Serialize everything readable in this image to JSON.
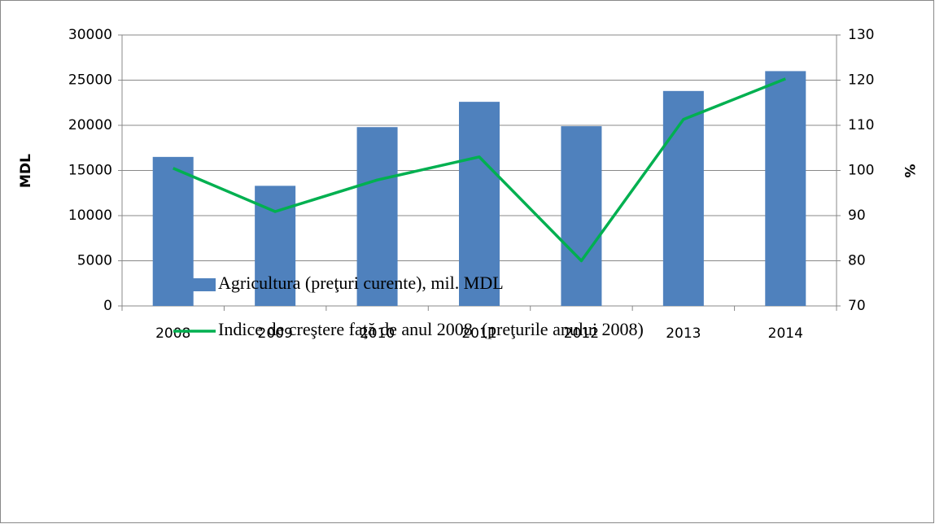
{
  "chart_data": {
    "type": "combo",
    "ylabel": "MDL",
    "y2label": "%",
    "categories": [
      "2008",
      "2009",
      "2010",
      "2011",
      "2012",
      "2013",
      "2014"
    ],
    "series": [
      {
        "name": "Agricultura (preţuri curente), mil. MDL",
        "type": "bar",
        "color": "#4f81bd",
        "values": [
          16500,
          13300,
          19800,
          22600,
          19900,
          23800,
          26000
        ]
      },
      {
        "name": "Indice de creştere faţă de anul 2008  (preţurile anului 2008)",
        "type": "line",
        "axis": "y2",
        "color": "#00b050",
        "values": [
          100.5,
          90.9,
          97.9,
          103,
          80,
          111.3,
          120.3
        ]
      }
    ],
    "ylim": [
      0,
      30000
    ],
    "yticks": [
      0,
      5000,
      10000,
      15000,
      20000,
      25000,
      30000
    ],
    "y2lim": [
      70,
      130
    ],
    "y2ticks": [
      70,
      80,
      90,
      100,
      110,
      120,
      130
    ],
    "grid": true,
    "legend": "bottom"
  }
}
